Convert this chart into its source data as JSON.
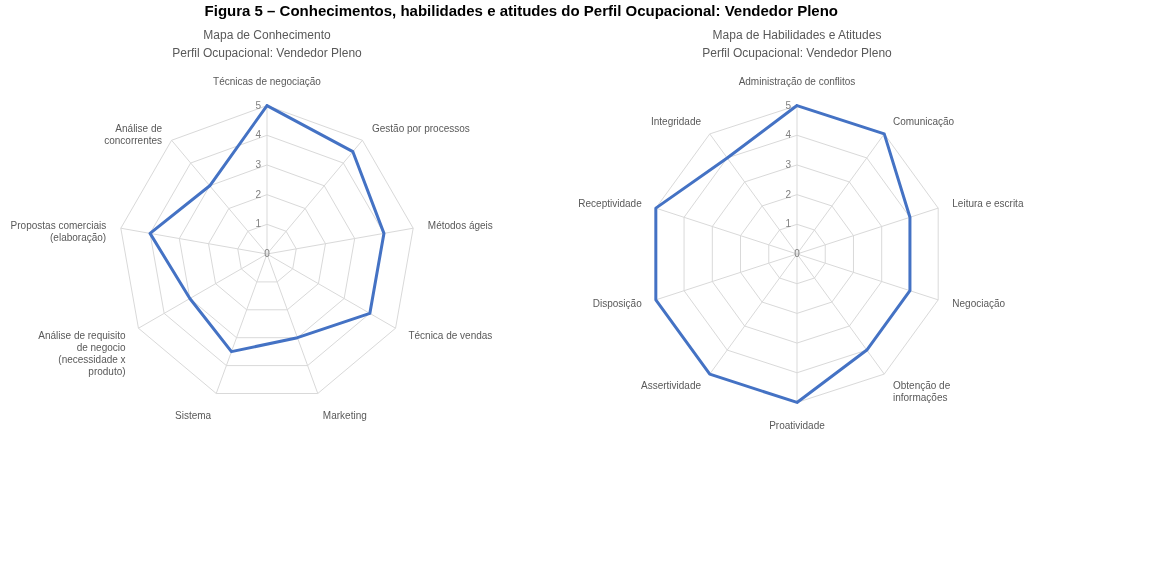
{
  "chart_data": [
    {
      "type": "radar",
      "title": "Mapa de Conhecimento",
      "subtitle": "Perfil Ocupacional: Vendedor  Pleno",
      "annotations": [
        "Figura 5 – Conhecimentos, habilidades e atitudes do Perfil Ocupacional: Vendedor Pleno"
      ],
      "categories": [
        "Técnicas de negociação",
        "Gestão por processos",
        "Métodos ágeis",
        "Técnica de vendas",
        "Marketing",
        "Sistema",
        "Análise de requisito de negocio (necessidade x produto)",
        "Propostas comerciais (elaboração)",
        "Análise de concorrentes"
      ],
      "series": [
        {
          "color": "#4472c4",
          "values": [
            5,
            4.5,
            4,
            4,
            3,
            3.5,
            3,
            4,
            3
          ]
        }
      ],
      "ylim": [
        0,
        5
      ],
      "yticks": [
        0,
        1,
        2,
        3,
        4,
        5
      ],
      "grid": true
    },
    {
      "type": "radar",
      "title": "Mapa de Habilidades e Atitudes",
      "subtitle": "Perfil Ocupacional: Vendedor  Pleno",
      "categories": [
        "Administração de conflitos",
        "Comunicação",
        "Leitura e escrita",
        "Negociação",
        "Obtenção de informações",
        "Proatividade",
        "Assertividade",
        "Disposição",
        "Receptividade",
        "Integridade"
      ],
      "series": [
        {
          "color": "#4472c4",
          "values": [
            5,
            5,
            4,
            4,
            4,
            5,
            5,
            5,
            5,
            4
          ]
        }
      ],
      "ylim": [
        0,
        5
      ],
      "yticks": [
        0,
        1,
        2,
        3,
        4,
        5
      ],
      "grid": true
    }
  ]
}
